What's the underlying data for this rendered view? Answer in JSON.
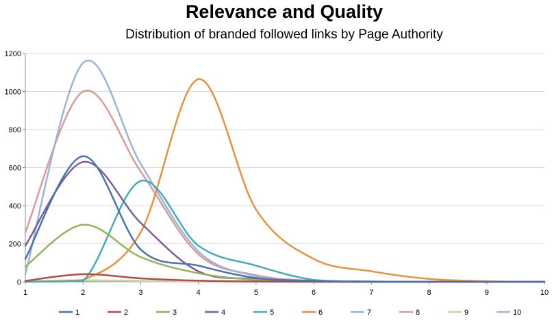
{
  "chart_data": {
    "type": "line",
    "title": "Relevance and Quality",
    "subtitle": "Distribution of branded followed links by Page Authority",
    "xlabel": "",
    "ylabel": "",
    "xlim": [
      1,
      10
    ],
    "ylim": [
      0,
      1200
    ],
    "x_ticks": [
      "1",
      "2",
      "3",
      "4",
      "5",
      "6",
      "7",
      "8",
      "9",
      "10"
    ],
    "y_ticks": [
      "0",
      "200",
      "400",
      "600",
      "800",
      "1000",
      "1200"
    ],
    "grid": "horizontal",
    "legend_position": "bottom",
    "x": [
      1,
      2,
      3,
      4,
      5,
      6,
      7,
      8,
      9,
      10
    ],
    "series": [
      {
        "name": "1",
        "color": "#4a72b0",
        "values": [
          120,
          660,
          170,
          85,
          20,
          5,
          0,
          0,
          0,
          0
        ]
      },
      {
        "name": "2",
        "color": "#b54a48",
        "values": [
          5,
          40,
          18,
          6,
          2,
          0,
          0,
          0,
          0,
          0
        ]
      },
      {
        "name": "3",
        "color": "#94b558",
        "values": [
          80,
          300,
          130,
          45,
          10,
          2,
          0,
          0,
          0,
          0
        ]
      },
      {
        "name": "4",
        "color": "#7a5d9c",
        "values": [
          190,
          630,
          310,
          55,
          15,
          3,
          0,
          0,
          0,
          0
        ]
      },
      {
        "name": "5",
        "color": "#45aabf",
        "values": [
          0,
          5,
          530,
          190,
          85,
          10,
          2,
          0,
          0,
          0
        ]
      },
      {
        "name": "6",
        "color": "#e8913a",
        "values": [
          0,
          10,
          260,
          1065,
          380,
          120,
          55,
          15,
          3,
          0
        ]
      },
      {
        "name": "7",
        "color": "#9db2d5",
        "values": [
          40,
          1150,
          620,
          160,
          30,
          5,
          0,
          0,
          0,
          0
        ]
      },
      {
        "name": "8",
        "color": "#d99a98",
        "values": [
          260,
          1000,
          580,
          145,
          35,
          5,
          0,
          0,
          0,
          0
        ]
      },
      {
        "name": "9",
        "color": "#c1d99c",
        "values": [
          5,
          8,
          5,
          2,
          0,
          0,
          0,
          0,
          0,
          0
        ]
      },
      {
        "name": "10",
        "color": "#b8a8cf",
        "values": [
          3,
          5,
          3,
          1,
          0,
          0,
          0,
          0,
          0,
          0
        ]
      }
    ]
  },
  "colors": {
    "gridline": "#d9d9d9",
    "axis": "#8c8c8c"
  }
}
